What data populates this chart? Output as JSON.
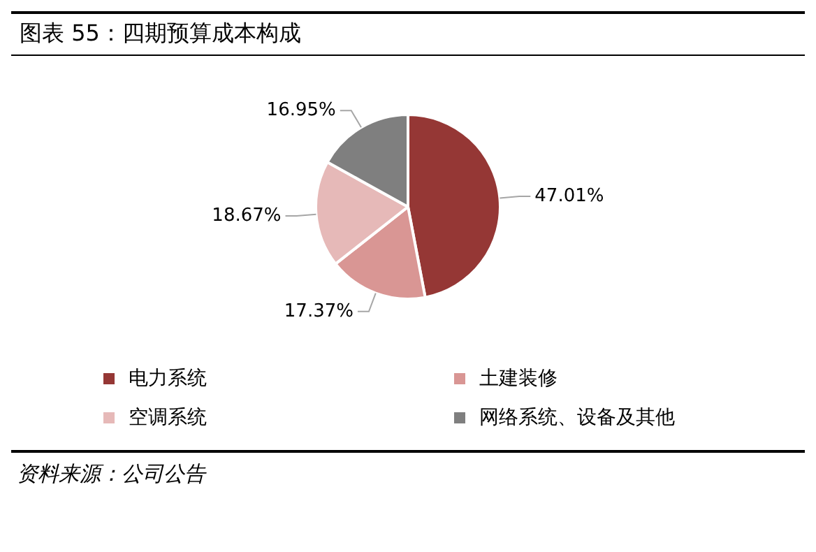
{
  "chart_data": {
    "type": "pie",
    "title": "图表 55：四期预算成本构成",
    "categories": [
      "电力系统",
      "土建装修",
      "空调系统",
      "网络系统、设备及其他"
    ],
    "values": [
      47.01,
      17.37,
      18.67,
      16.95
    ],
    "colors": [
      "#953735",
      "#d99694",
      "#e6b9b8",
      "#7f7f7f"
    ],
    "value_labels": [
      "47.01%",
      "17.37%",
      "18.67%",
      "16.95%"
    ],
    "legend": "bottom",
    "annotations": [
      "资料来源：公司公告"
    ]
  }
}
